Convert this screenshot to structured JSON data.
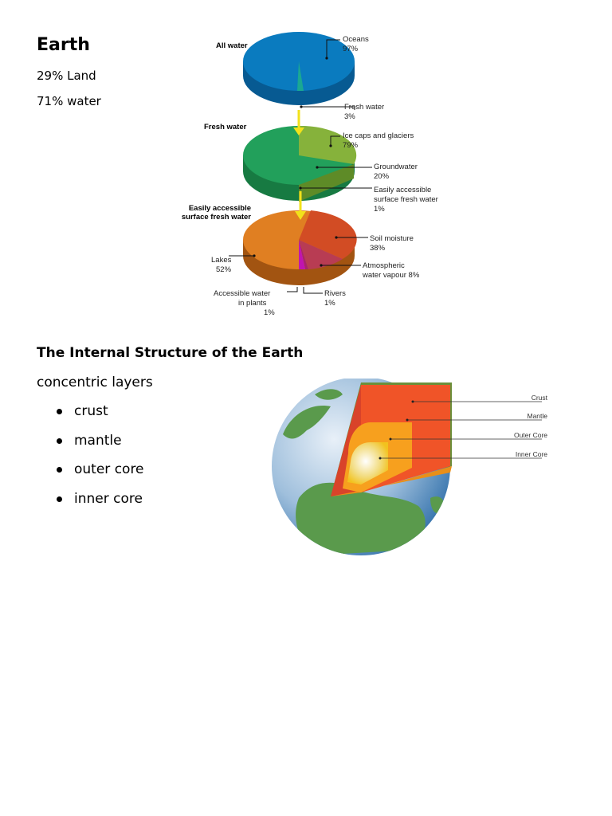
{
  "earth": {
    "title": "Earth",
    "land": "29% Land",
    "water": "71% water"
  },
  "water_diagram": {
    "heading_all": "All water",
    "heading_fresh": "Fresh water",
    "heading_surface_1": "Easily accessible",
    "heading_surface_2": "surface fresh water",
    "oceans_1": "Oceans",
    "oceans_2": "97%",
    "fresh_1": "Fresh water",
    "fresh_2": "3%",
    "ice_1": "Ice caps and glaciers",
    "ice_2": "79%",
    "ground_1": "Groundwater",
    "ground_2": "20%",
    "easy_1": "Easily accessible",
    "easy_2": "surface fresh water",
    "easy_3": "1%",
    "soil_1": "Soil moisture",
    "soil_2": "38%",
    "atmo_1": "Atmospheric",
    "atmo_2": "water vapour 8%",
    "lakes_1": "Lakes",
    "lakes_2": "52%",
    "plants_1": "Accessible water",
    "plants_2": "in plants",
    "plants_3": "1%",
    "rivers_1": "Rivers",
    "rivers_2": "1%",
    "colors": {
      "all_water": "#0a7bbf",
      "fresh_water": "#22a05b",
      "surface": "#e07f22"
    }
  },
  "structure": {
    "title": "The Internal Structure of the Earth",
    "intro": "concentric layers",
    "layers": [
      "crust",
      "mantle",
      "outer core",
      "inner core"
    ],
    "labels": {
      "crust": "Crust",
      "mantle": "Mantle",
      "outer_core": "Outer Core",
      "inner_core": "Inner Core"
    }
  }
}
